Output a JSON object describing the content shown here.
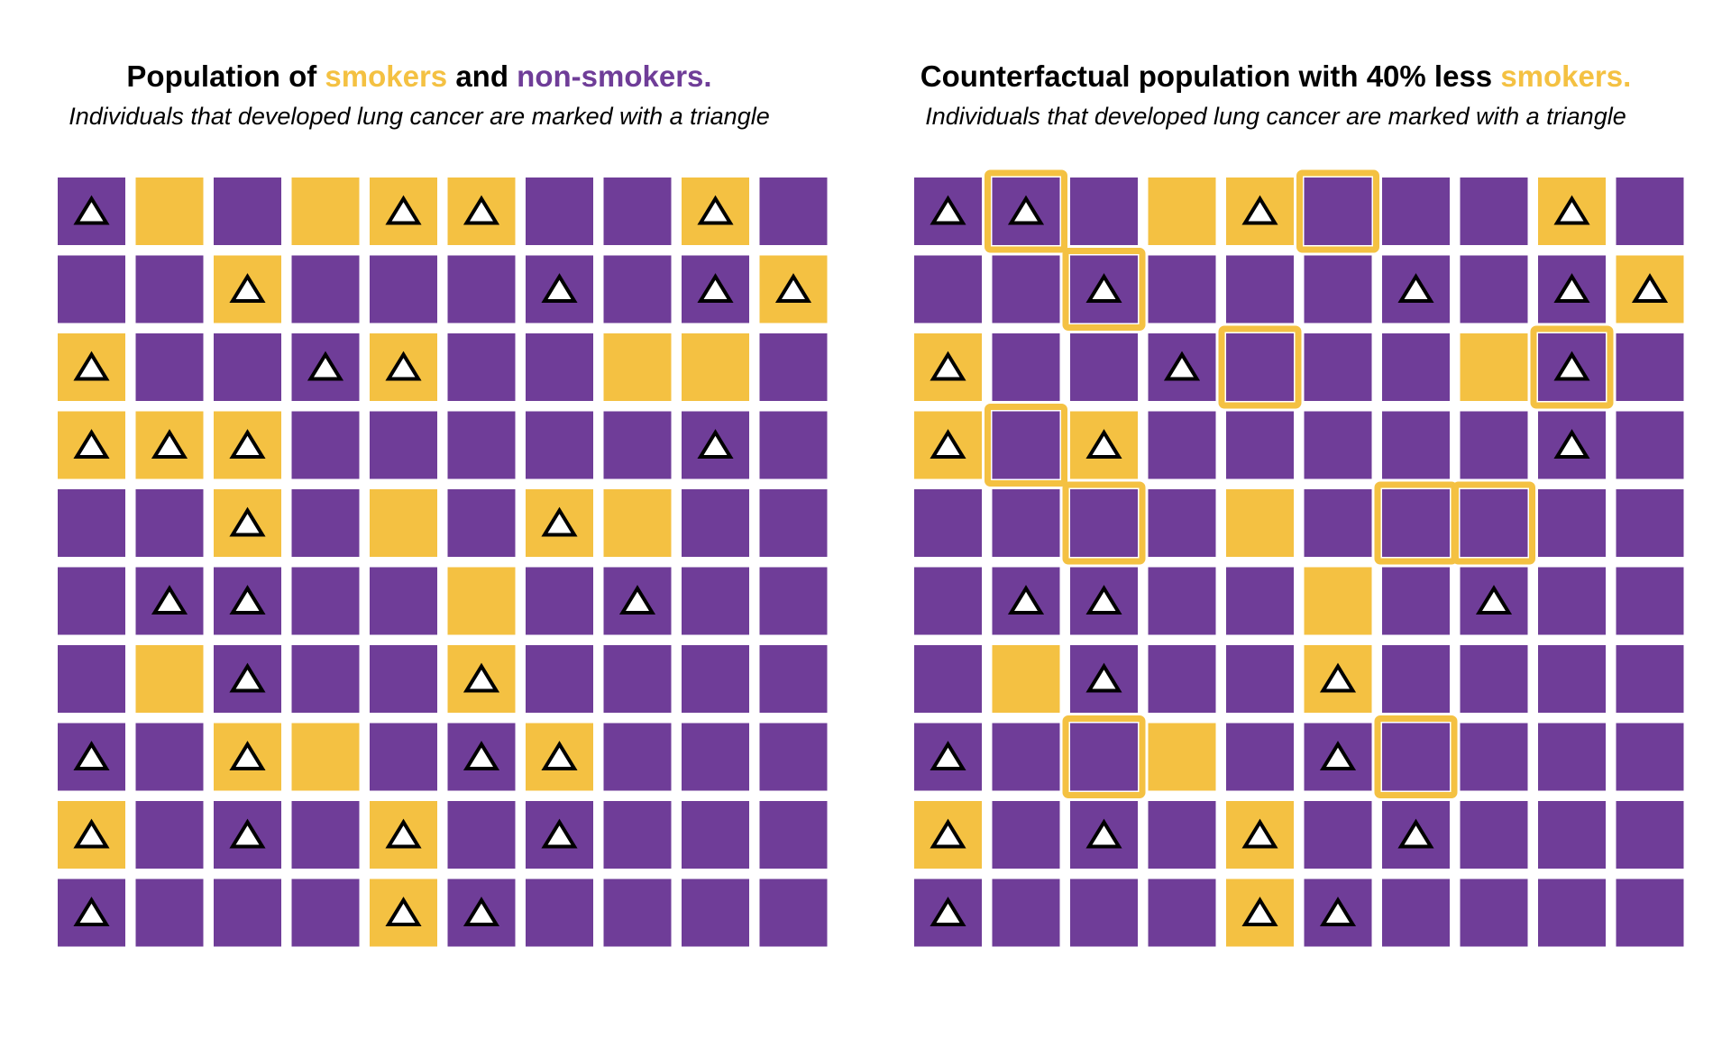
{
  "colors": {
    "smoker": "#F4C142",
    "non_smoker": "#6F3D98",
    "triangle_fill": "#ffffff",
    "triangle_stroke": "#000000",
    "highlight_outline": "#F4C142"
  },
  "legend_encoding": {
    "S": "smoker",
    "N": "non-smoker",
    "^": "developed lung cancer (triangle)",
    "*": "changed from smoker in counterfactual (outlined)"
  },
  "left_panel": {
    "title_prefix": "Population of ",
    "title_smokers": "smokers",
    "title_and": " and ",
    "title_nonsmokers": "non-smokers.",
    "subtitle": "Individuals that developed lung cancer are marked with a triangle",
    "rows": [
      [
        "N^",
        "S",
        "N",
        "S",
        "S^",
        "S^",
        "N",
        "N",
        "S^",
        "N"
      ],
      [
        "N",
        "N",
        "S^",
        "N",
        "N",
        "N",
        "N^",
        "N",
        "N^",
        "S^"
      ],
      [
        "S^",
        "N",
        "N",
        "N^",
        "S^",
        "N",
        "N",
        "S",
        "S",
        "N"
      ],
      [
        "S^",
        "S^",
        "S^",
        "N",
        "N",
        "N",
        "N",
        "N",
        "N^",
        "N"
      ],
      [
        "N",
        "N",
        "S^",
        "N",
        "S",
        "N",
        "S^",
        "S",
        "N",
        "N"
      ],
      [
        "N",
        "N^",
        "N^",
        "N",
        "N",
        "S",
        "N",
        "N^",
        "N",
        "N"
      ],
      [
        "N",
        "S",
        "N^",
        "N",
        "N",
        "S^",
        "N",
        "N",
        "N",
        "N"
      ],
      [
        "N^",
        "N",
        "S^",
        "S",
        "N",
        "N^",
        "S^",
        "N",
        "N",
        "N"
      ],
      [
        "S^",
        "N",
        "N^",
        "N",
        "S^",
        "N",
        "N^",
        "N",
        "N",
        "N"
      ],
      [
        "N^",
        "N",
        "N",
        "N",
        "S^",
        "N^",
        "N",
        "N",
        "N",
        "N"
      ]
    ]
  },
  "right_panel": {
    "title_prefix": "Counterfactual population with 40% less ",
    "title_smokers": "smokers.",
    "subtitle": "Individuals that developed lung cancer are marked with a triangle",
    "rows": [
      [
        "N^",
        "N^*",
        "N",
        "S",
        "S^",
        "N*",
        "N",
        "N",
        "S^",
        "N"
      ],
      [
        "N",
        "N",
        "N^*",
        "N",
        "N",
        "N",
        "N^",
        "N",
        "N^",
        "S^"
      ],
      [
        "S^",
        "N",
        "N",
        "N^",
        "N*",
        "N",
        "N",
        "S",
        "N^*",
        "N"
      ],
      [
        "S^",
        "N*",
        "S^",
        "N",
        "N",
        "N",
        "N",
        "N",
        "N^",
        "N"
      ],
      [
        "N",
        "N",
        "N*",
        "N",
        "S",
        "N",
        "N*",
        "N*",
        "N",
        "N"
      ],
      [
        "N",
        "N^",
        "N^",
        "N",
        "N",
        "S",
        "N",
        "N^",
        "N",
        "N"
      ],
      [
        "N",
        "S",
        "N^",
        "N",
        "N",
        "S^",
        "N",
        "N",
        "N",
        "N"
      ],
      [
        "N^",
        "N",
        "N*",
        "S",
        "N",
        "N^",
        "N*",
        "N",
        "N",
        "N"
      ],
      [
        "S^",
        "N",
        "N^",
        "N",
        "S^",
        "N",
        "N^",
        "N",
        "N",
        "N"
      ],
      [
        "N^",
        "N",
        "N",
        "N",
        "S^",
        "N^",
        "N",
        "N",
        "N",
        "N"
      ]
    ]
  }
}
